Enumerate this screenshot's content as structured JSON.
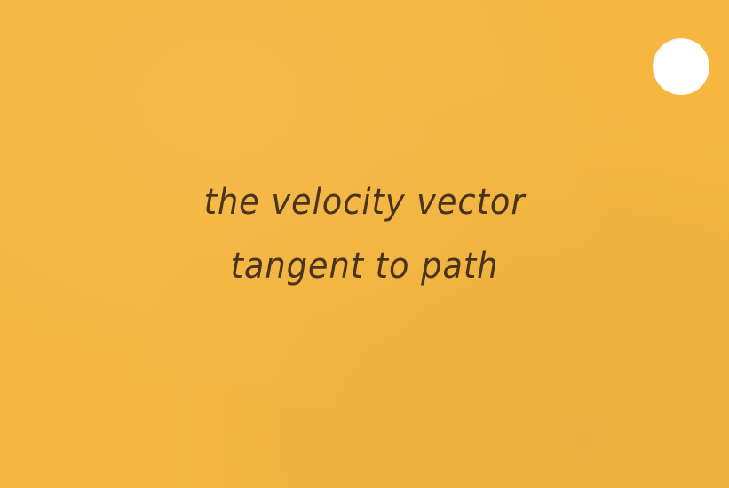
{
  "card": {
    "lines": [
      "the velocity vector",
      "tangent to path"
    ]
  },
  "colors": {
    "card_background": "#f6b63f",
    "hole": "#ffffff",
    "text": "#3a2a18"
  }
}
